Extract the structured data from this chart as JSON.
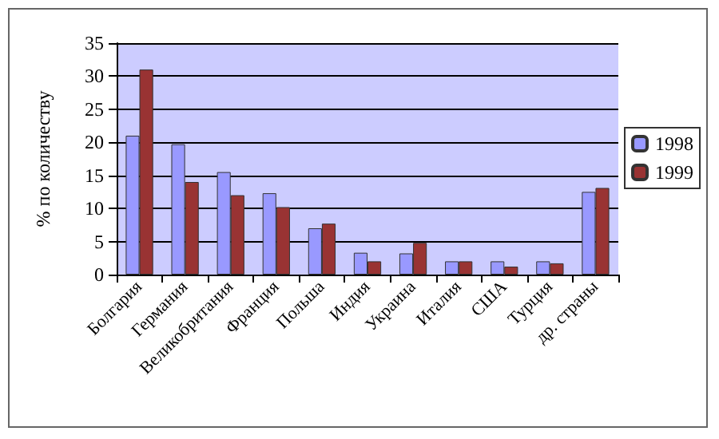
{
  "chart_data": {
    "type": "bar",
    "ylabel": "% по количеству",
    "categories": [
      "Болгария",
      "Германия",
      "Великобритания",
      "Франция",
      "Польша",
      "Индия",
      "Украина",
      "Италия",
      "США",
      "Турция",
      "др. страны"
    ],
    "series": [
      {
        "name": "1998",
        "color": "#9999ff",
        "values": [
          21,
          19.7,
          15.5,
          12.3,
          7,
          3.3,
          3.2,
          2,
          2,
          2,
          12.5
        ]
      },
      {
        "name": "1999",
        "color": "#993333",
        "values": [
          31,
          14,
          12,
          10.2,
          7.7,
          2,
          4.8,
          2,
          1.2,
          1.7,
          13.1
        ]
      }
    ],
    "ylim": [
      0,
      35
    ],
    "yticks": [
      0,
      5,
      10,
      15,
      20,
      25,
      30,
      35
    ],
    "grid": "y",
    "legend": "right"
  }
}
